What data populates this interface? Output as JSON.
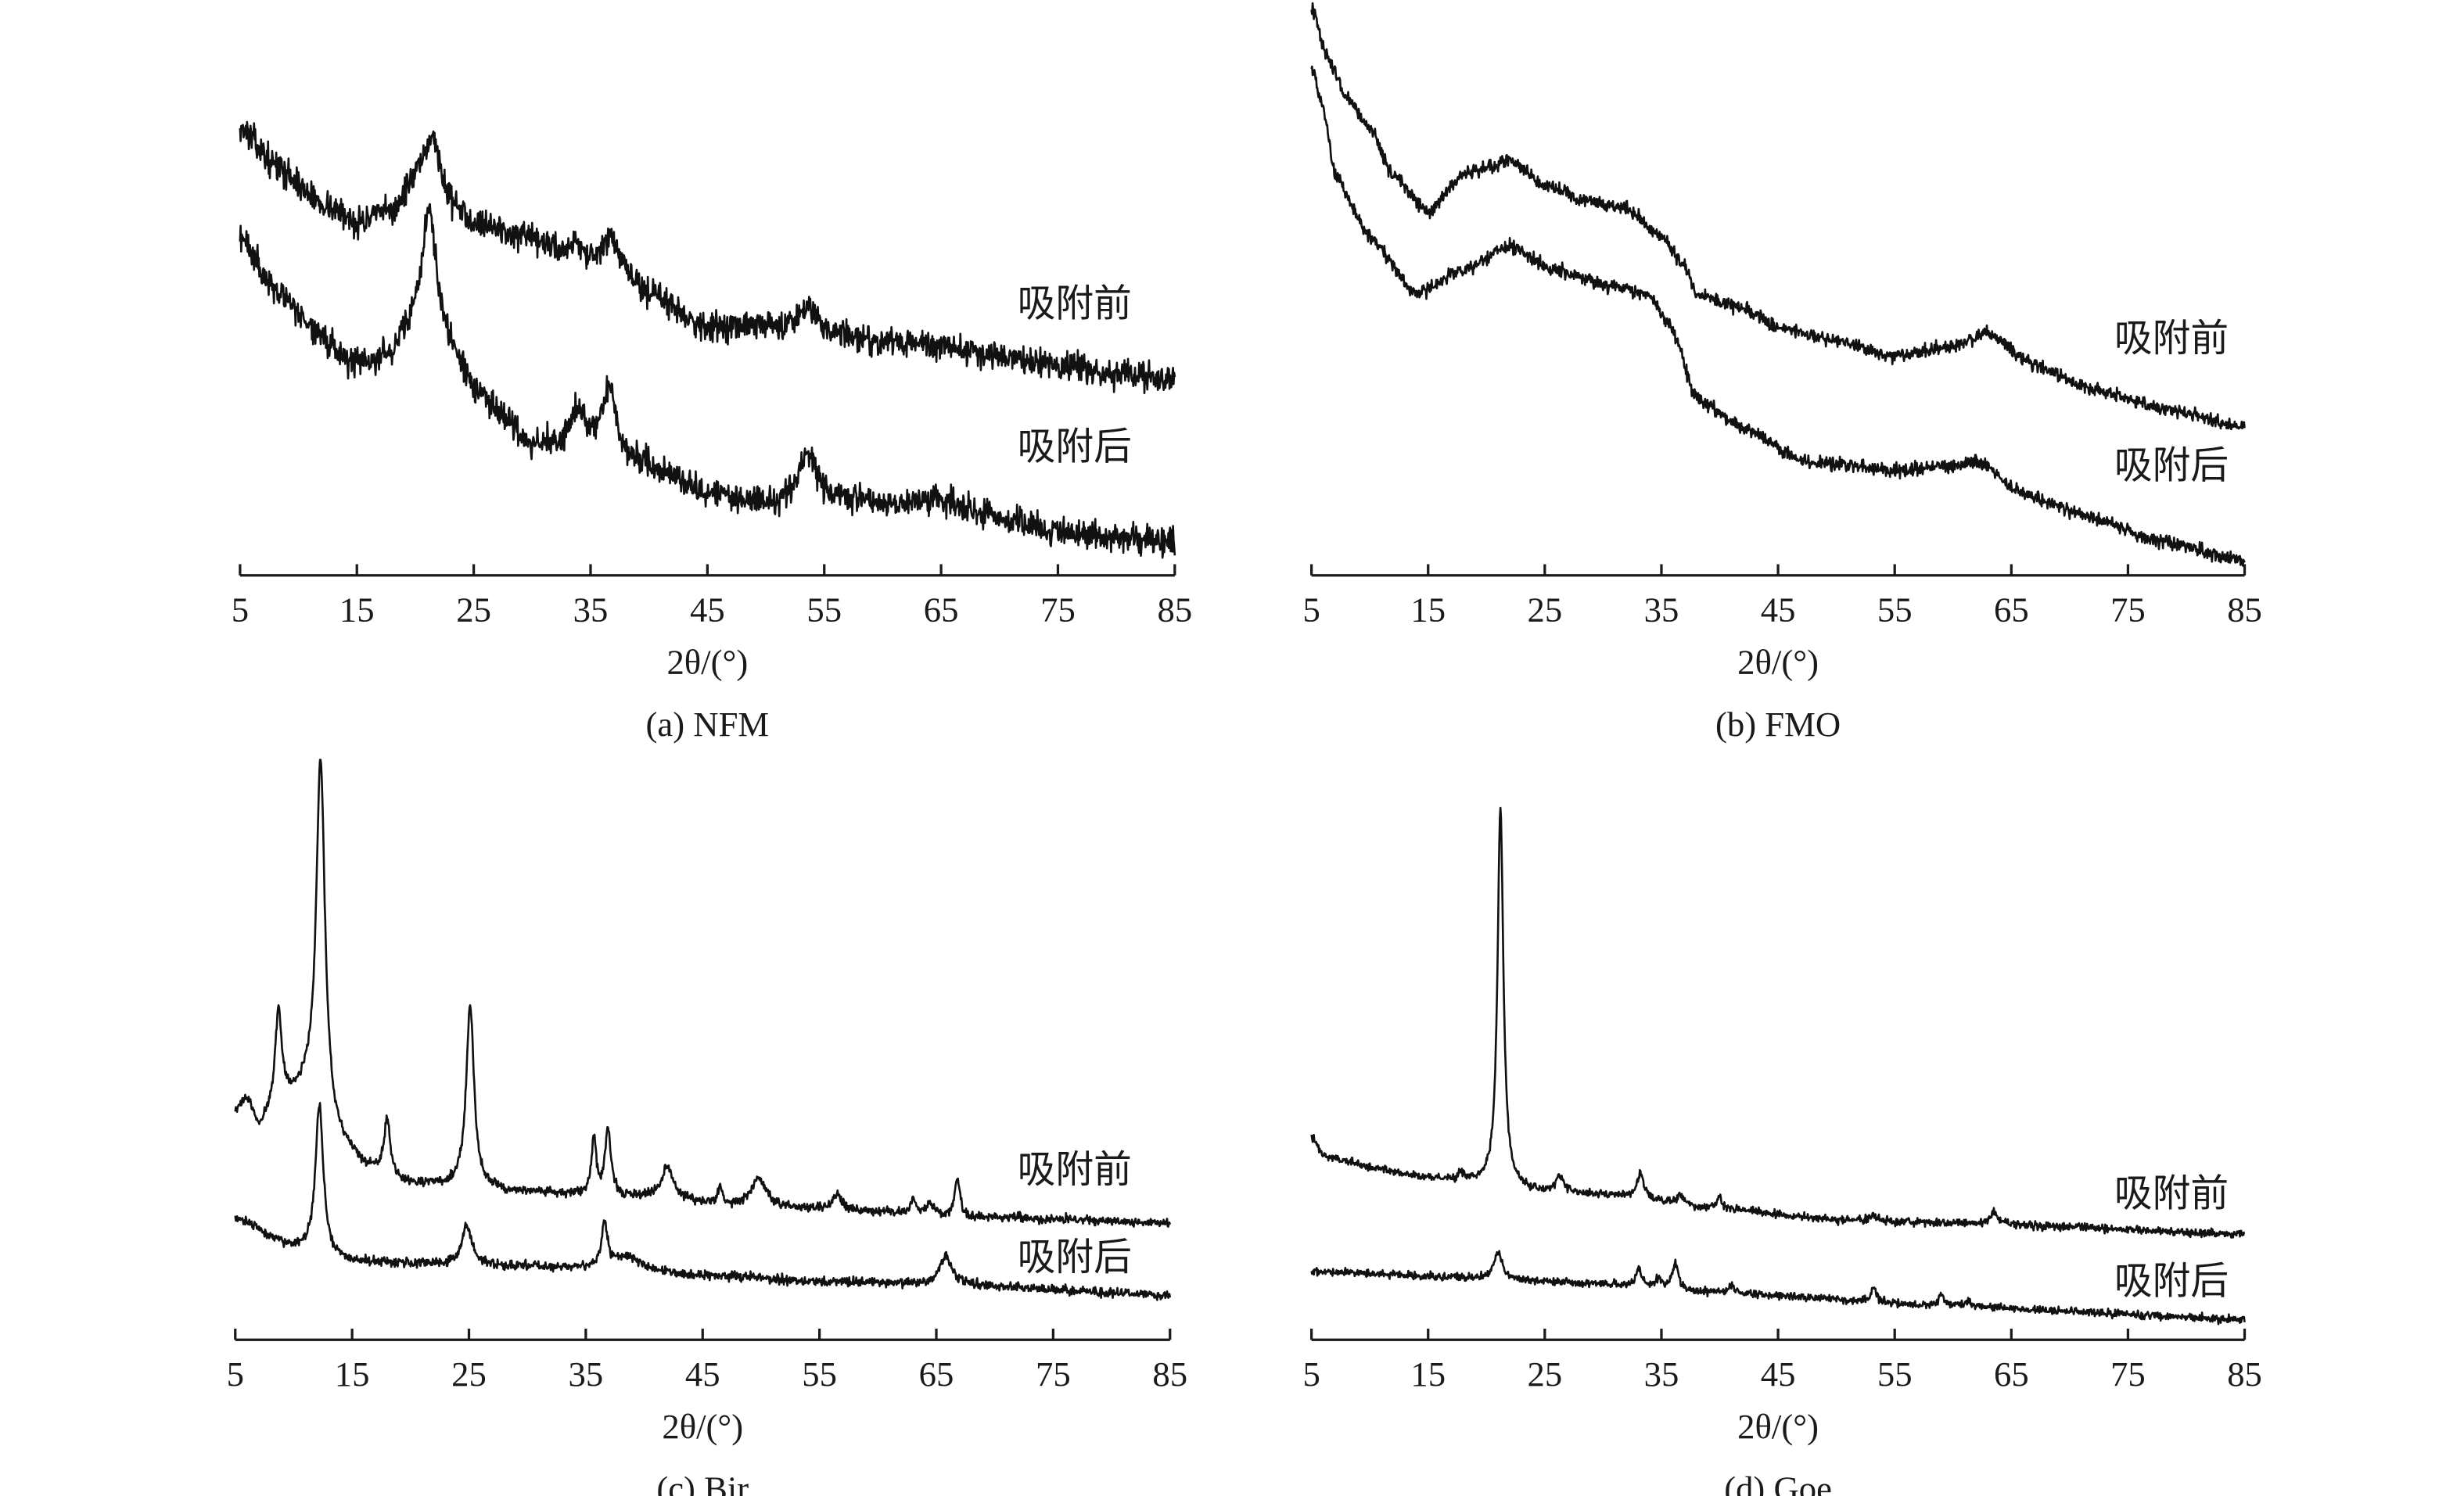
{
  "chart_data": [
    {
      "type": "line",
      "title": "(a) NFM",
      "xlabel": "2θ/(°)",
      "ylabel": "",
      "xlim": [
        5,
        85
      ],
      "ylim": [
        0,
        100
      ],
      "xticks": [
        "5",
        "15",
        "25",
        "35",
        "45",
        "55",
        "65",
        "75",
        "85"
      ],
      "grid": false,
      "noise": 3.0,
      "series": [
        {
          "name": "吸附前",
          "baseline": [
            [
              5,
              94
            ],
            [
              8,
              86
            ],
            [
              12,
              78
            ],
            [
              15,
              74
            ],
            [
              18,
              76
            ],
            [
              20,
              82
            ],
            [
              22,
              78
            ],
            [
              25,
              74
            ],
            [
              30,
              70
            ],
            [
              35,
              65
            ],
            [
              38,
              62
            ],
            [
              40,
              59
            ],
            [
              45,
              52
            ],
            [
              50,
              52
            ],
            [
              53,
              51
            ],
            [
              56,
              50
            ],
            [
              60,
              49
            ],
            [
              65,
              48
            ],
            [
              70,
              46
            ],
            [
              75,
              44
            ],
            [
              80,
              42
            ],
            [
              85,
              41
            ]
          ],
          "peaks": [
            {
              "x": 21.5,
              "h": 14,
              "w": 0.7
            },
            {
              "x": 33.8,
              "h": 4,
              "w": 0.6
            },
            {
              "x": 36.8,
              "h": 8,
              "w": 0.7
            },
            {
              "x": 53.6,
              "h": 6,
              "w": 1.0
            }
          ]
        },
        {
          "name": "吸附后",
          "baseline": [
            [
              5,
              71
            ],
            [
              8,
              60
            ],
            [
              12,
              50
            ],
            [
              15,
              44
            ],
            [
              18,
              46
            ],
            [
              20,
              52
            ],
            [
              22,
              50
            ],
            [
              25,
              39
            ],
            [
              28,
              32
            ],
            [
              30,
              27
            ],
            [
              33,
              28
            ],
            [
              35,
              27
            ],
            [
              38,
              24
            ],
            [
              42,
              21
            ],
            [
              45,
              17
            ],
            [
              50,
              15
            ],
            [
              53,
              16
            ],
            [
              57,
              16
            ],
            [
              60,
              15
            ],
            [
              65,
              16
            ],
            [
              70,
              12
            ],
            [
              75,
              9
            ],
            [
              80,
              8
            ],
            [
              85,
              7
            ]
          ],
          "peaks": [
            {
              "x": 21.2,
              "h": 26,
              "w": 0.7
            },
            {
              "x": 34.0,
              "h": 7,
              "w": 0.6
            },
            {
              "x": 36.6,
              "h": 14,
              "w": 0.7
            },
            {
              "x": 53.6,
              "h": 9,
              "w": 0.9
            }
          ]
        }
      ]
    },
    {
      "type": "line",
      "title": "(b) FMO",
      "xlabel": "2θ/(°)",
      "ylabel": "",
      "xlim": [
        5,
        85
      ],
      "ylim": [
        0,
        100
      ],
      "xticks": [
        "5",
        "15",
        "25",
        "35",
        "45",
        "55",
        "65",
        "75",
        "85"
      ],
      "grid": false,
      "noise": 1.4,
      "series": [
        {
          "name": "吸附前",
          "baseline": [
            [
              5,
              119
            ],
            [
              6.5,
              108
            ],
            [
              8,
              100
            ],
            [
              10,
              94
            ],
            [
              12,
              84
            ],
            [
              15,
              76
            ],
            [
              18,
              84
            ],
            [
              22,
              87
            ],
            [
              25,
              82
            ],
            [
              28,
              79
            ],
            [
              32,
              77
            ],
            [
              35,
              71
            ],
            [
              37,
              65
            ],
            [
              38,
              59
            ],
            [
              42,
              56
            ],
            [
              45,
              52
            ],
            [
              50,
              49
            ],
            [
              55,
              46
            ],
            [
              60,
              48
            ],
            [
              63,
              51
            ],
            [
              67,
              44
            ],
            [
              72,
              39
            ],
            [
              78,
              35
            ],
            [
              85,
              31
            ]
          ],
          "peaks": []
        },
        {
          "name": "吸附后",
          "baseline": [
            [
              5,
              107
            ],
            [
              6,
              98
            ],
            [
              7,
              84
            ],
            [
              10,
              71
            ],
            [
              14,
              59
            ],
            [
              18,
              64
            ],
            [
              22,
              69
            ],
            [
              26,
              64
            ],
            [
              30,
              61
            ],
            [
              34,
              59
            ],
            [
              36,
              51
            ],
            [
              38,
              37
            ],
            [
              42,
              31
            ],
            [
              47,
              24
            ],
            [
              55,
              22
            ],
            [
              60,
              23
            ],
            [
              62,
              24
            ],
            [
              66,
              17
            ],
            [
              72,
              12
            ],
            [
              78,
              7
            ],
            [
              85,
              3
            ]
          ],
          "peaks": []
        }
      ]
    },
    {
      "type": "line",
      "title": "(c) Bir",
      "xlabel": "2θ/(°)",
      "ylabel": "",
      "xlim": [
        5,
        85
      ],
      "ylim": [
        0,
        100
      ],
      "xticks": [
        "5",
        "15",
        "25",
        "35",
        "45",
        "55",
        "65",
        "75",
        "85"
      ],
      "grid": false,
      "noise": 0.8,
      "series": [
        {
          "name": "吸附前",
          "baseline": [
            [
              5,
              41
            ],
            [
              6,
              43
            ],
            [
              7,
              38
            ],
            [
              8,
              40
            ],
            [
              10,
              43
            ],
            [
              11,
              44
            ],
            [
              14,
              35
            ],
            [
              16,
              31
            ],
            [
              20,
              28
            ],
            [
              30,
              26.5
            ],
            [
              40,
              25.5
            ],
            [
              50,
              23.7
            ],
            [
              60,
              23
            ],
            [
              70,
              22
            ],
            [
              85,
              21
            ]
          ],
          "peaks": [
            {
              "x": 8.7,
              "h": 18,
              "w": 0.35
            },
            {
              "x": 12.3,
              "h": 64,
              "w": 0.45
            },
            {
              "x": 18.0,
              "h": 10,
              "w": 0.3
            },
            {
              "x": 25.1,
              "h": 33,
              "w": 0.4
            },
            {
              "x": 35.7,
              "h": 10,
              "w": 0.25
            },
            {
              "x": 36.9,
              "h": 12,
              "w": 0.3
            },
            {
              "x": 42.0,
              "h": 6,
              "w": 0.6
            },
            {
              "x": 46.5,
              "h": 3,
              "w": 0.2
            },
            {
              "x": 49.8,
              "h": 5,
              "w": 0.8
            },
            {
              "x": 56.5,
              "h": 3,
              "w": 0.5
            },
            {
              "x": 63.0,
              "h": 2.5,
              "w": 0.3
            },
            {
              "x": 64.5,
              "h": 2,
              "w": 0.3
            },
            {
              "x": 66.8,
              "h": 7,
              "w": 0.25
            }
          ]
        },
        {
          "name": "吸附后",
          "baseline": [
            [
              5,
              22
            ],
            [
              10,
              16.6
            ],
            [
              15,
              14
            ],
            [
              25,
              13.5
            ],
            [
              35,
              12.8
            ],
            [
              45,
              11.5
            ],
            [
              55,
              10.5
            ],
            [
              65,
              10
            ],
            [
              85,
              8
            ]
          ],
          "peaks": [
            {
              "x": 12.2,
              "h": 27,
              "w": 0.4
            },
            {
              "x": 24.8,
              "h": 7,
              "w": 0.5
            },
            {
              "x": 36.6,
              "h": 8,
              "w": 0.3
            },
            {
              "x": 38.5,
              "h": 2.5,
              "w": 1.5
            },
            {
              "x": 65.8,
              "h": 5,
              "w": 0.6
            }
          ]
        }
      ]
    },
    {
      "type": "line",
      "title": "(d) Goe",
      "xlabel": "2θ/(°)",
      "ylabel": "",
      "xlim": [
        5,
        85
      ],
      "ylim": [
        0,
        100
      ],
      "xticks": [
        "5",
        "15",
        "25",
        "35",
        "45",
        "55",
        "65",
        "75",
        "85"
      ],
      "grid": false,
      "noise": 0.7,
      "series": [
        {
          "name": "吸附前",
          "baseline": [
            [
              5,
              36.6
            ],
            [
              6,
              33
            ],
            [
              10,
              31
            ],
            [
              15,
              29
            ],
            [
              20,
              28
            ],
            [
              25,
              26.5
            ],
            [
              30,
              26
            ],
            [
              40,
              23.5
            ],
            [
              50,
              21.5
            ],
            [
              60,
              21
            ],
            [
              85,
              19
            ]
          ],
          "peaks": [
            {
              "x": 17.8,
              "h": 1.5,
              "w": 0.3
            },
            {
              "x": 21.2,
              "h": 68,
              "w": 0.3
            },
            {
              "x": 26.3,
              "h": 3,
              "w": 0.4
            },
            {
              "x": 33.2,
              "h": 4.5,
              "w": 0.35
            },
            {
              "x": 36.6,
              "h": 2,
              "w": 0.3
            },
            {
              "x": 40.0,
              "h": 2,
              "w": 0.3
            },
            {
              "x": 53.2,
              "h": 1.2,
              "w": 0.4
            },
            {
              "x": 63.5,
              "h": 2,
              "w": 0.4
            }
          ]
        },
        {
          "name": "吸附后",
          "baseline": [
            [
              5,
              12.3
            ],
            [
              20,
              11
            ],
            [
              30,
              10
            ],
            [
              40,
              8.5
            ],
            [
              60,
              6
            ],
            [
              85,
              3.7
            ]
          ],
          "peaks": [
            {
              "x": 21.0,
              "h": 5,
              "w": 0.4
            },
            {
              "x": 33.1,
              "h": 3,
              "w": 0.3
            },
            {
              "x": 34.7,
              "h": 1.5,
              "w": 0.3
            },
            {
              "x": 36.2,
              "h": 5,
              "w": 0.3
            },
            {
              "x": 41.0,
              "h": 1.2,
              "w": 0.3
            },
            {
              "x": 53.2,
              "h": 2.5,
              "w": 0.3
            },
            {
              "x": 59.0,
              "h": 2,
              "w": 0.3
            },
            {
              "x": 61.3,
              "h": 1.2,
              "w": 0.3
            }
          ]
        }
      ]
    }
  ]
}
